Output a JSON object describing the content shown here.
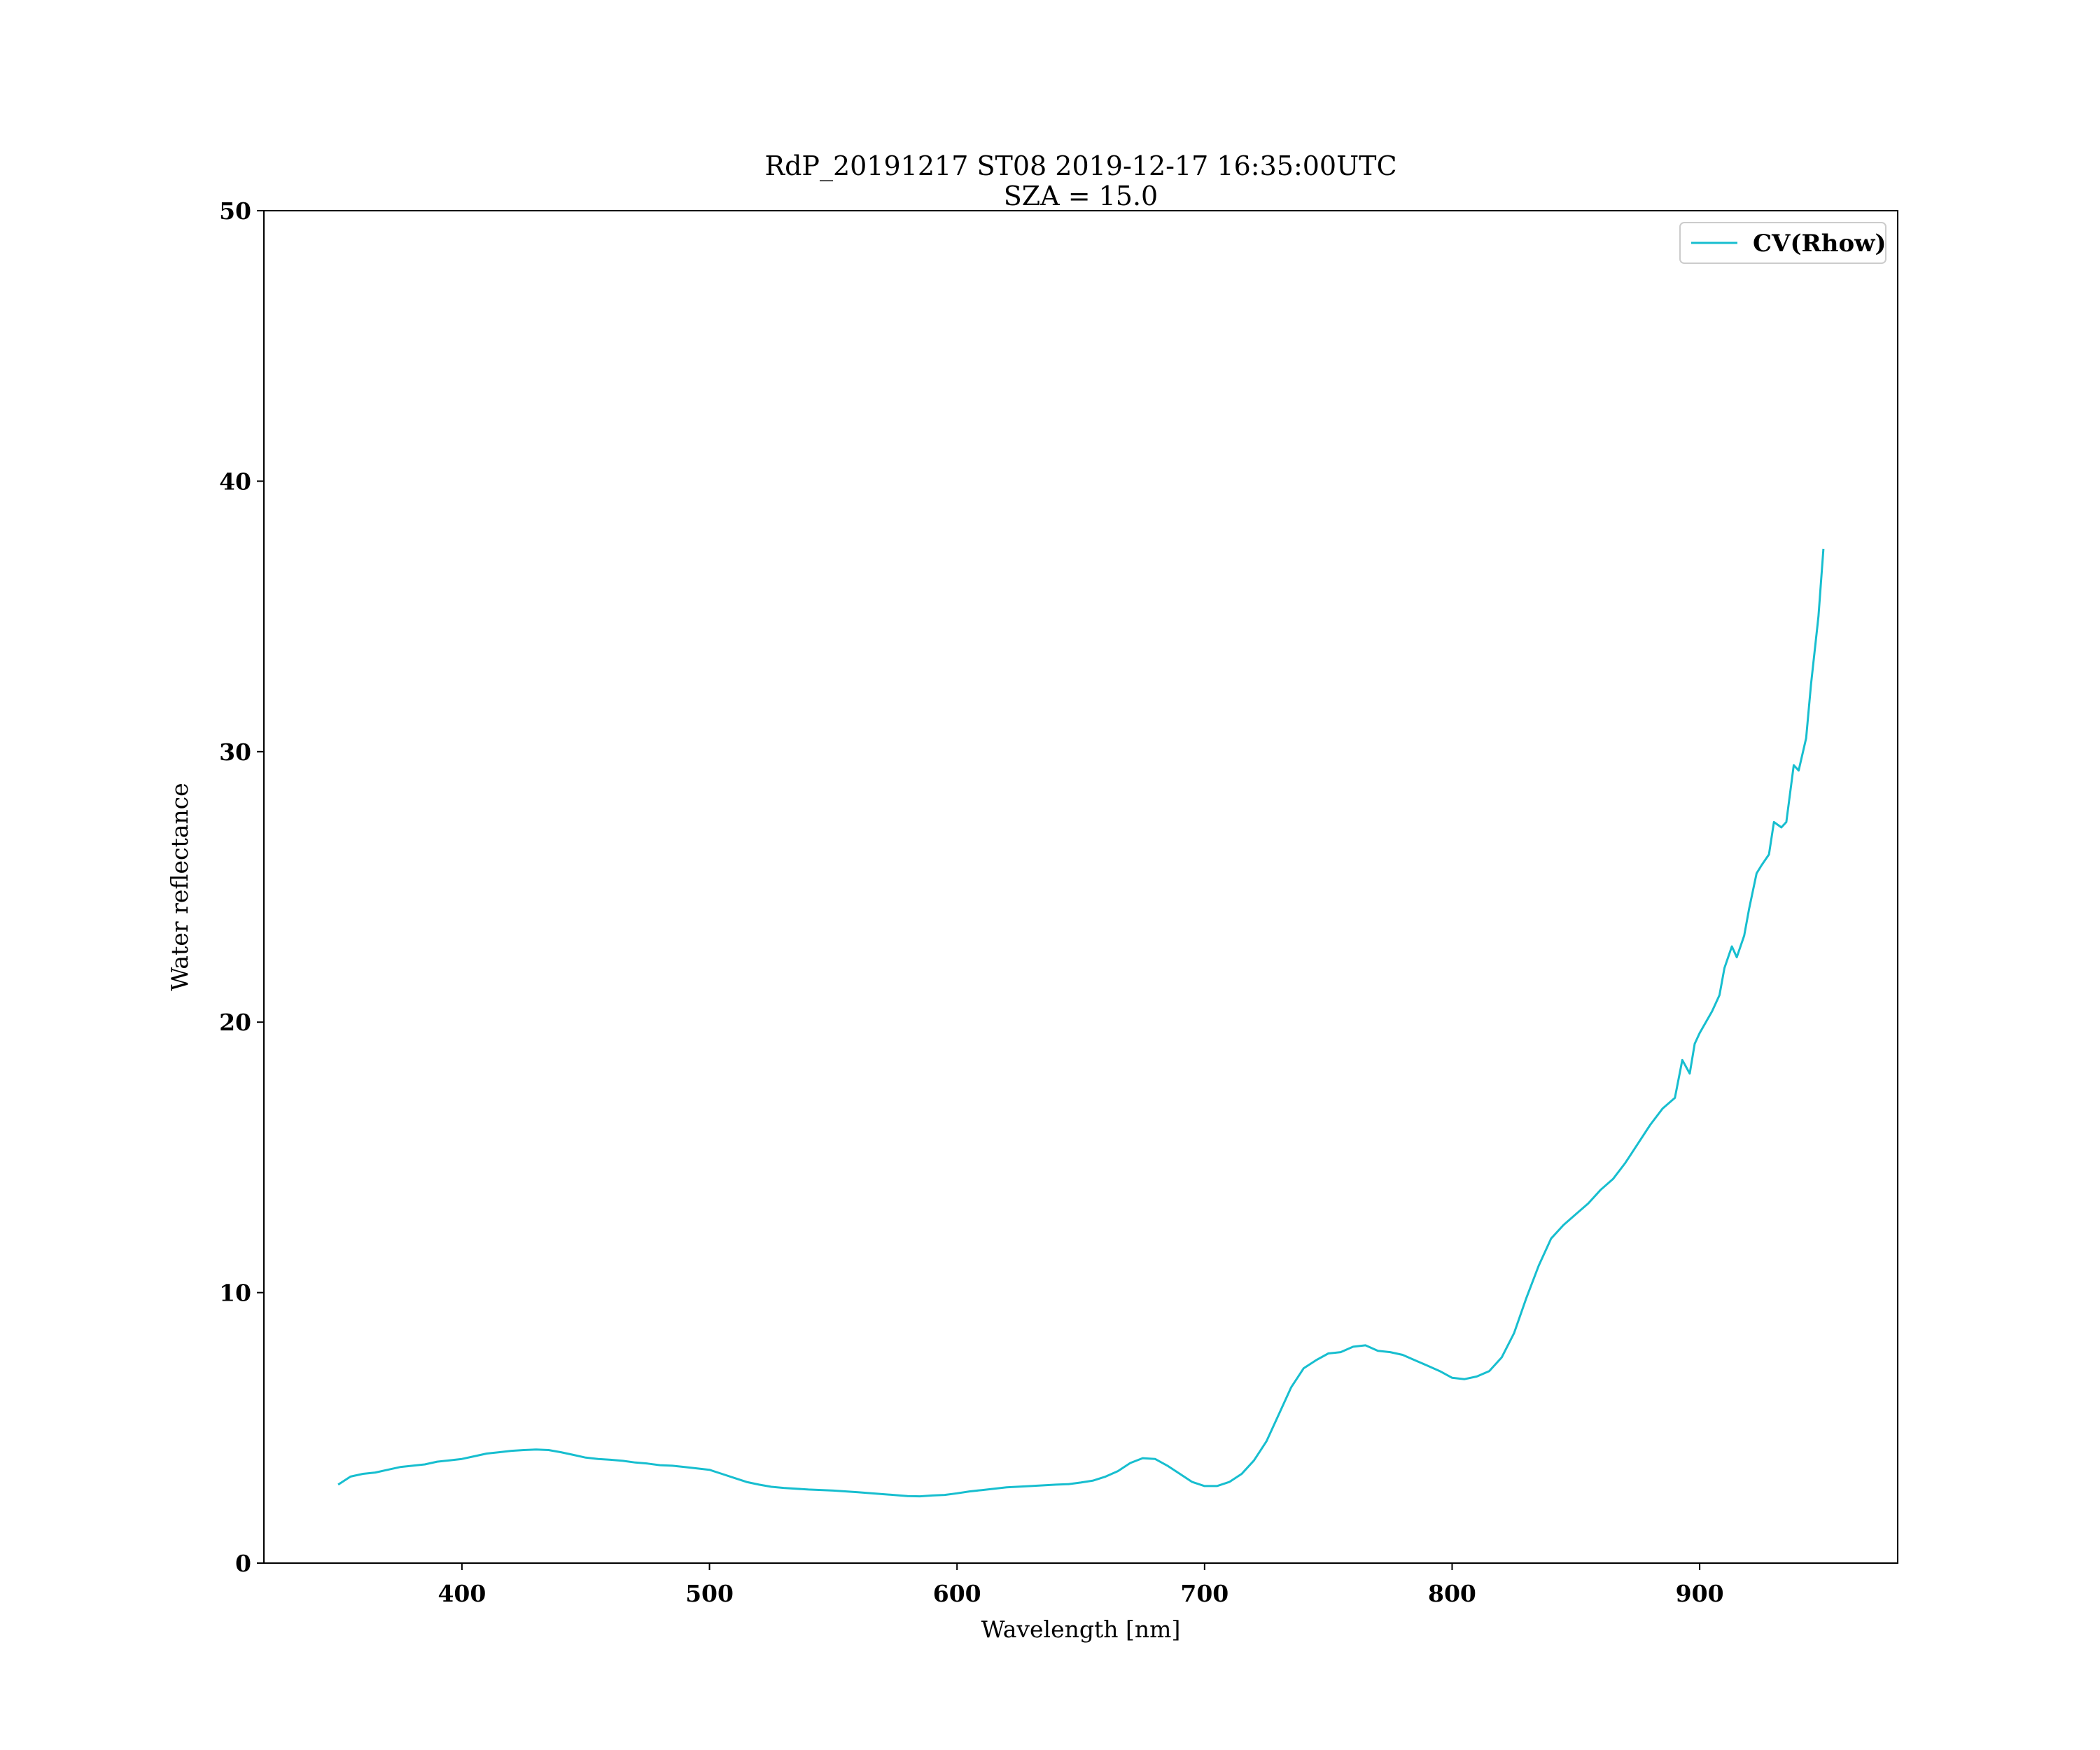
{
  "chart_data": {
    "type": "line",
    "title": "RdP_20191217 ST08 2019-12-17 16:35:00UTC",
    "subtitle": "SZA = 15.0",
    "xlabel": "Wavelength [nm]",
    "ylabel": "Water reflectance",
    "xlim": [
      320,
      980
    ],
    "ylim": [
      0,
      50
    ],
    "xticks": [
      400,
      500,
      600,
      700,
      800,
      900
    ],
    "yticks": [
      0,
      10,
      20,
      30,
      40,
      50
    ],
    "grid": false,
    "legend_position": "top-right",
    "series": [
      {
        "name": "CV(Rhow)",
        "color": "#17becf",
        "x": [
          350,
          355,
          360,
          365,
          370,
          375,
          380,
          385,
          390,
          395,
          400,
          405,
          410,
          415,
          420,
          425,
          430,
          435,
          440,
          445,
          450,
          455,
          460,
          465,
          470,
          475,
          480,
          485,
          490,
          495,
          500,
          505,
          510,
          515,
          520,
          525,
          530,
          540,
          550,
          560,
          570,
          580,
          585,
          590,
          595,
          600,
          605,
          610,
          615,
          620,
          630,
          640,
          645,
          650,
          655,
          660,
          665,
          670,
          675,
          680,
          685,
          690,
          695,
          700,
          705,
          710,
          715,
          720,
          725,
          730,
          735,
          740,
          745,
          750,
          755,
          760,
          765,
          770,
          775,
          780,
          785,
          790,
          795,
          800,
          805,
          810,
          815,
          820,
          825,
          830,
          835,
          840,
          845,
          850,
          855,
          860,
          865,
          870,
          875,
          880,
          885,
          890,
          893,
          896,
          898,
          900,
          905,
          908,
          910,
          913,
          915,
          918,
          920,
          923,
          925,
          928,
          930,
          933,
          935,
          938,
          940,
          943,
          945,
          948,
          950
        ],
        "y": [
          2.9,
          3.2,
          3.3,
          3.35,
          3.45,
          3.55,
          3.6,
          3.65,
          3.75,
          3.8,
          3.85,
          3.95,
          4.05,
          4.1,
          4.15,
          4.18,
          4.2,
          4.18,
          4.1,
          4.0,
          3.9,
          3.85,
          3.82,
          3.78,
          3.72,
          3.68,
          3.62,
          3.6,
          3.55,
          3.5,
          3.45,
          3.3,
          3.15,
          3.0,
          2.9,
          2.82,
          2.78,
          2.72,
          2.68,
          2.62,
          2.55,
          2.48,
          2.47,
          2.5,
          2.52,
          2.58,
          2.65,
          2.7,
          2.75,
          2.8,
          2.85,
          2.9,
          2.92,
          2.98,
          3.05,
          3.2,
          3.4,
          3.7,
          3.88,
          3.85,
          3.6,
          3.3,
          3.0,
          2.85,
          2.85,
          3.0,
          3.3,
          3.8,
          4.5,
          5.5,
          6.5,
          7.2,
          7.5,
          7.75,
          7.8,
          8.0,
          8.05,
          7.85,
          7.8,
          7.7,
          7.5,
          7.3,
          7.1,
          6.85,
          6.8,
          6.9,
          7.1,
          7.6,
          8.5,
          9.8,
          11.0,
          12.0,
          12.5,
          12.9,
          13.3,
          13.8,
          14.2,
          14.8,
          15.5,
          16.2,
          16.8,
          17.2,
          18.6,
          18.1,
          19.2,
          19.6,
          20.4,
          21.0,
          22.0,
          22.8,
          22.4,
          23.2,
          24.2,
          25.5,
          25.8,
          26.2,
          27.4,
          27.2,
          27.4,
          29.5,
          29.3,
          30.5,
          32.5,
          35.0,
          37.5
        ]
      }
    ]
  }
}
